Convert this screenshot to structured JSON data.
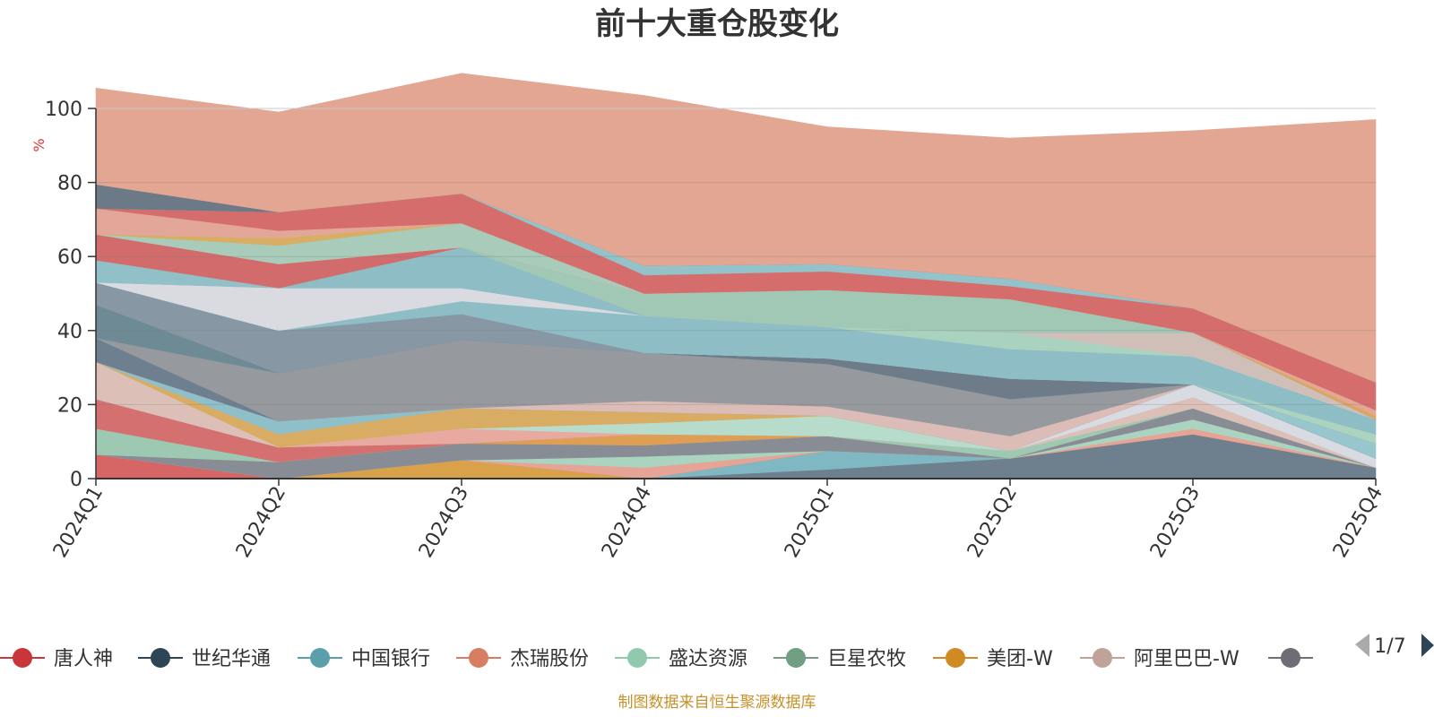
{
  "chart_data": {
    "type": "area",
    "stacked": true,
    "title": "前十大重仓股变化",
    "ylabel": "%",
    "ylim": [
      0,
      100
    ],
    "yticks": [
      0,
      20,
      40,
      60,
      80,
      100
    ],
    "grid": true,
    "categories": [
      "2024Q1",
      "2024Q2",
      "2024Q3",
      "2024Q4",
      "2025Q1",
      "2025Q2",
      "2025Q3",
      "2025Q4"
    ],
    "series": [
      {
        "name": "",
        "color": "#6e7f8d",
        "values": [
          0,
          0,
          0,
          0,
          2.5,
          5.5,
          12,
          3
        ]
      },
      {
        "name": "",
        "color": "#7fb8c2",
        "values": [
          0,
          0,
          0,
          0,
          5,
          0,
          0,
          0
        ]
      },
      {
        "name": "",
        "color": "#d9a24a",
        "values": [
          0,
          0,
          5,
          0,
          0,
          0,
          0,
          0
        ]
      },
      {
        "name": "",
        "color": "#d66666",
        "values": [
          6.5,
          0,
          0,
          0,
          0,
          0,
          0,
          0
        ]
      },
      {
        "name": "",
        "color": "#e6a497",
        "values": [
          0,
          0,
          0,
          3,
          0,
          0,
          1.5,
          0
        ]
      },
      {
        "name": "",
        "color": "#aad4c0",
        "values": [
          0,
          0,
          0,
          3,
          0,
          0,
          2.5,
          0
        ]
      },
      {
        "name": "",
        "color": "#888c94",
        "values": [
          0,
          4.5,
          4.5,
          3,
          4,
          0,
          3,
          0
        ]
      },
      {
        "name": "",
        "color": "#de9f55",
        "values": [
          0,
          0,
          0,
          3,
          0,
          0,
          0,
          0
        ]
      },
      {
        "name": "",
        "color": "#9dc9b2",
        "values": [
          7,
          0,
          0,
          0,
          0,
          2,
          0,
          0
        ]
      },
      {
        "name": "",
        "color": "#d47070",
        "values": [
          8,
          4,
          0,
          0,
          0,
          0,
          0,
          0
        ]
      },
      {
        "name": "",
        "color": "#e8aaa0",
        "values": [
          0,
          0,
          4,
          0,
          0,
          0,
          0,
          0
        ]
      },
      {
        "name": "",
        "color": "#b8dccb",
        "values": [
          0,
          0,
          0,
          3,
          5.5,
          0,
          0,
          0
        ]
      },
      {
        "name": "",
        "color": "#dcc0b8",
        "values": [
          10,
          0,
          0,
          0,
          0,
          0,
          3,
          0
        ]
      },
      {
        "name": "",
        "color": "#d8ac62",
        "values": [
          0,
          3.5,
          5.5,
          3,
          0,
          0,
          0,
          0
        ]
      },
      {
        "name": "",
        "color": "#8fbfc8",
        "values": [
          0,
          3.5,
          0,
          0,
          0,
          0,
          0,
          0
        ]
      },
      {
        "name": "",
        "color": "#d8dbe2",
        "values": [
          0,
          0,
          0,
          0,
          0,
          0,
          3.5,
          2.5
        ]
      },
      {
        "name": "",
        "color": "#6e8090",
        "values": [
          6.5,
          0,
          0,
          0,
          0,
          0,
          0,
          0
        ]
      },
      {
        "name": "",
        "color": "#dcbcb6",
        "values": [
          0,
          0,
          0,
          3,
          2.5,
          4,
          0,
          0
        ]
      },
      {
        "name": "",
        "color": "#96999e",
        "values": [
          0,
          13,
          18.5,
          13,
          11.5,
          10,
          0,
          0
        ]
      },
      {
        "name": "",
        "color": "#6e8a95",
        "values": [
          9,
          0,
          0,
          0,
          0,
          0,
          0,
          0
        ]
      },
      {
        "name": "",
        "color": "#6e7e89",
        "values": [
          0,
          0,
          0,
          0,
          0,
          0,
          0,
          0
        ]
      },
      {
        "name": "",
        "color": "#97c6cc",
        "values": [
          0,
          0,
          0,
          0,
          0,
          0,
          0,
          4
        ]
      },
      {
        "name": "",
        "color": "#6d7c88",
        "values": [
          0,
          0,
          0,
          0,
          1.5,
          5.5,
          0,
          0
        ]
      },
      {
        "name": "",
        "color": "#8897a4",
        "values": [
          6,
          11.5,
          7,
          0,
          0,
          0,
          0,
          0
        ]
      },
      {
        "name": "",
        "color": "#abd3bf",
        "values": [
          0,
          0,
          0,
          0,
          0,
          0,
          0,
          2.5
        ]
      },
      {
        "name": "",
        "color": "#8fbec6",
        "values": [
          0,
          0,
          0,
          0,
          0,
          0,
          1,
          0
        ]
      },
      {
        "name": "",
        "color": "#8ab9c3",
        "values": [
          0,
          0,
          0,
          0,
          0,
          0,
          0,
          0
        ]
      },
      {
        "name": "",
        "color": "#8ebdc6",
        "values": [
          0,
          0,
          3.5,
          10,
          8.5,
          8,
          6.5,
          4
        ]
      },
      {
        "name": "",
        "color": "#a9d2bf",
        "values": [
          0,
          0,
          0,
          0,
          0,
          4.5,
          0,
          0
        ]
      },
      {
        "name": "",
        "color": "#d9dbe1",
        "values": [
          0,
          11.5,
          3.5,
          0,
          0,
          0,
          0,
          0
        ]
      },
      {
        "name": "",
        "color": "#d0beb8",
        "values": [
          0,
          0,
          0,
          0,
          0,
          0,
          6.5,
          0
        ]
      },
      {
        "name": "",
        "color": "#91c0c8",
        "values": [
          6,
          0,
          0,
          0,
          0,
          0,
          0,
          0
        ]
      },
      {
        "name": "",
        "color": "#8ebdc5",
        "values": [
          0,
          0,
          11,
          0,
          0,
          0,
          0,
          0
        ]
      },
      {
        "name": "",
        "color": "#a1c8b5",
        "values": [
          0,
          0,
          0,
          6,
          10,
          9,
          0,
          0
        ]
      },
      {
        "name": "",
        "color": "#d26c6c",
        "values": [
          7,
          6.5,
          0,
          0,
          0,
          0,
          0,
          0
        ]
      },
      {
        "name": "",
        "color": "#d9a85e",
        "values": [
          0,
          0,
          0,
          0,
          0,
          0,
          0,
          1
        ]
      },
      {
        "name": "",
        "color": "#e5a694",
        "values": [
          0,
          0,
          0,
          0,
          0,
          0,
          0,
          1.5
        ]
      },
      {
        "name": "",
        "color": "#a8ccb9",
        "values": [
          0,
          5,
          6.5,
          0,
          0,
          0,
          0,
          0
        ]
      },
      {
        "name": "",
        "color": "#8dc0c9",
        "values": [
          0,
          0,
          0,
          0,
          0,
          0,
          0,
          0
        ]
      },
      {
        "name": "",
        "color": "#d8ae64",
        "values": [
          0,
          2,
          0,
          0,
          0,
          0,
          0,
          0
        ]
      },
      {
        "name": "",
        "color": "#e2a799",
        "values": [
          7,
          2,
          0,
          0,
          0,
          0,
          0,
          0
        ]
      },
      {
        "name": "",
        "color": "#d66d6d",
        "values": [
          0,
          5,
          8,
          5,
          5,
          3.5,
          6.5,
          7.5
        ]
      },
      {
        "name": "",
        "color": "#93c2ca",
        "values": [
          0,
          0,
          0,
          2.5,
          2,
          2,
          0,
          0
        ]
      },
      {
        "name": "",
        "color": "#6b7a86",
        "values": [
          6.5,
          0,
          0,
          0,
          0,
          0,
          0,
          0
        ]
      },
      {
        "name": "",
        "color": "#e2a692",
        "values": [
          26,
          27,
          32.5,
          46,
          37,
          38,
          48,
          71
        ]
      }
    ],
    "legend": {
      "position": "bottom",
      "page": "1/7",
      "items": [
        {
          "label": "唐人神",
          "color": "#c9363a"
        },
        {
          "label": "世纪华通",
          "color": "#2e4556"
        },
        {
          "label": "中国银行",
          "color": "#5a9faa"
        },
        {
          "label": "杰瑞股份",
          "color": "#d77d62"
        },
        {
          "label": "盛达资源",
          "color": "#91c9ae"
        },
        {
          "label": "巨星农牧",
          "color": "#6f9e80"
        },
        {
          "label": "美团-W",
          "color": "#cf8a22"
        },
        {
          "label": "阿里巴巴-W",
          "color": "#bfa398"
        },
        {
          "label": "",
          "color": "#6d6e74"
        }
      ]
    },
    "source": "制图数据来自恒生聚源数据库"
  }
}
